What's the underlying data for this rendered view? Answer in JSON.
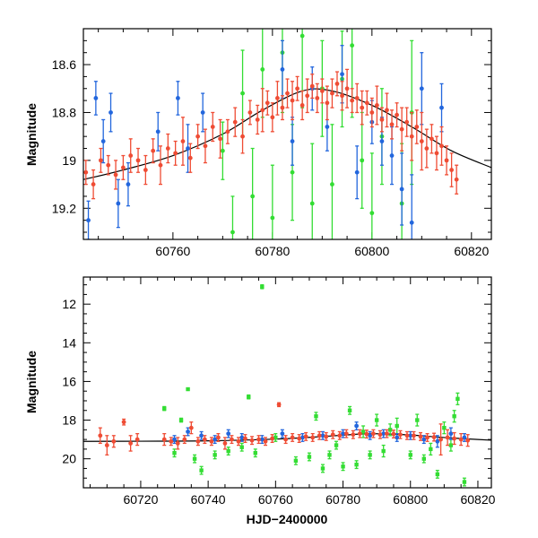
{
  "chart_data": [
    {
      "type": "scatter",
      "panel": "top",
      "title": "",
      "xlabel": "",
      "ylabel": "Magnitude",
      "xlim": [
        60742,
        60824
      ],
      "ylim": [
        19.33,
        18.45
      ],
      "y_inverted": true,
      "xticks": [
        60760,
        60780,
        60800,
        60820
      ],
      "yticks": [
        18.6,
        18.8,
        19,
        19.2
      ],
      "ytick_labels": [
        "18.6",
        "18.8",
        "19",
        "19.2"
      ],
      "grid": false,
      "legend": "none",
      "colors": {
        "red": "#ef4c34",
        "blue": "#2266dd",
        "green": "#33dd33",
        "model": "#000000"
      },
      "model_curve": {
        "x": [
          60742,
          60750,
          60760,
          60770,
          60778,
          60786,
          60792,
          60800,
          60808,
          60816,
          60824
        ],
        "y": [
          19.08,
          19.04,
          18.98,
          18.89,
          18.79,
          18.71,
          18.71,
          18.77,
          18.86,
          18.96,
          19.03
        ]
      },
      "series": [
        {
          "name": "",
          "color": "red",
          "x": [
            60742.5,
            60744,
            60745.5,
            60747,
            60748.5,
            60750,
            60751.5,
            60753,
            60754.5,
            60756,
            60757.5,
            60759,
            60760.5,
            60762,
            60763.5,
            60765,
            60766.5,
            60768,
            60769.5,
            60771,
            60772.5,
            60774,
            60775.5,
            60777,
            60778,
            60779,
            60780,
            60781,
            60782,
            60783,
            60784,
            60785,
            60786,
            60787,
            60788,
            60789,
            60790,
            60791,
            60792,
            60793,
            60794,
            60795,
            60796,
            60797,
            60798,
            60799,
            60800,
            60801,
            60802,
            60803,
            60804,
            60805,
            60806,
            60807,
            60808,
            60809,
            60810,
            60811,
            60812,
            60813,
            60814,
            60815,
            60816,
            60817
          ],
          "y": [
            19.05,
            19.1,
            19.0,
            19.02,
            19.06,
            19.03,
            18.98,
            19.0,
            19.04,
            18.96,
            19.02,
            18.95,
            18.97,
            18.92,
            18.99,
            18.9,
            18.94,
            18.86,
            18.91,
            18.88,
            18.84,
            18.9,
            18.8,
            18.83,
            18.79,
            18.76,
            18.82,
            18.74,
            18.78,
            18.72,
            18.75,
            18.7,
            18.77,
            18.73,
            18.69,
            18.74,
            18.71,
            18.76,
            18.72,
            18.68,
            18.73,
            18.7,
            18.75,
            18.74,
            18.78,
            18.76,
            18.8,
            18.77,
            18.83,
            18.79,
            18.85,
            18.81,
            18.87,
            18.84,
            18.9,
            18.86,
            18.92,
            18.95,
            18.91,
            18.97,
            18.94,
            19.0,
            19.04,
            19.08
          ],
          "err": [
            0.05,
            0.06,
            0.05,
            0.04,
            0.06,
            0.05,
            0.07,
            0.05,
            0.06,
            0.05,
            0.08,
            0.06,
            0.05,
            0.1,
            0.06,
            0.05,
            0.07,
            0.06,
            0.08,
            0.05,
            0.06,
            0.07,
            0.05,
            0.06,
            0.09,
            0.05,
            0.06,
            0.07,
            0.05,
            0.06,
            0.08,
            0.05,
            0.06,
            0.07,
            0.05,
            0.06,
            0.05,
            0.07,
            0.06,
            0.05,
            0.06,
            0.08,
            0.05,
            0.06,
            0.07,
            0.05,
            0.06,
            0.08,
            0.05,
            0.07,
            0.06,
            0.05,
            0.09,
            0.06,
            0.1,
            0.07,
            0.12,
            0.08,
            0.06,
            0.07,
            0.08,
            0.06,
            0.07,
            0.06
          ]
        },
        {
          "name": "",
          "color": "blue",
          "x": [
            60743,
            60744.5,
            60746,
            60747.5,
            60749,
            60751,
            60757,
            60761,
            60763,
            60766,
            60782,
            60784,
            60788,
            60791,
            60794,
            60797,
            60800,
            60802,
            60804,
            60806,
            60808,
            60810,
            60814
          ],
          "y": [
            19.25,
            18.74,
            18.92,
            18.8,
            19.18,
            19.1,
            18.88,
            18.74,
            18.95,
            18.8,
            18.62,
            18.92,
            18.7,
            18.86,
            18.64,
            19.05,
            18.84,
            18.92,
            18.98,
            19.12,
            19.26,
            18.7,
            18.78
          ],
          "err": [
            0.08,
            0.07,
            0.09,
            0.08,
            0.1,
            0.09,
            0.08,
            0.07,
            0.1,
            0.08,
            0.12,
            0.1,
            0.09,
            0.1,
            0.12,
            0.11,
            0.09,
            0.1,
            0.12,
            0.15,
            0.2,
            0.15,
            0.1
          ]
        },
        {
          "name": "",
          "color": "green",
          "x": [
            60770,
            60772,
            60774,
            60776,
            60778,
            60780,
            60782,
            60784,
            60786,
            60788,
            60790,
            60792,
            60794,
            60796,
            60798,
            60800,
            60802,
            60806,
            60808
          ],
          "y": [
            18.96,
            19.3,
            18.72,
            19.15,
            18.62,
            19.24,
            18.55,
            19.05,
            18.48,
            19.18,
            18.7,
            19.1,
            18.66,
            18.52,
            19.0,
            19.22,
            18.9,
            19.18,
            18.8
          ],
          "err": [
            0.12,
            0.15,
            0.18,
            0.2,
            0.2,
            0.22,
            0.25,
            0.2,
            0.3,
            0.25,
            0.2,
            0.25,
            0.2,
            0.3,
            0.2,
            0.25,
            0.2,
            0.25,
            0.3
          ]
        }
      ]
    },
    {
      "type": "scatter",
      "panel": "bottom",
      "title": "",
      "xlabel": "HJD−2400000",
      "ylabel": "Magnitude",
      "xlim": [
        60703,
        60824
      ],
      "ylim": [
        21.5,
        10.6
      ],
      "y_inverted": true,
      "xticks": [
        60720,
        60740,
        60760,
        60780,
        60800,
        60820
      ],
      "yticks": [
        12,
        14,
        16,
        18,
        20
      ],
      "ytick_labels": [
        "12",
        "14",
        "16",
        "18",
        "20"
      ],
      "grid": false,
      "legend": "none",
      "model_curve": {
        "x": [
          60703,
          60720,
          60740,
          60760,
          60770,
          60780,
          60786,
          60792,
          60800,
          60810,
          60820,
          60824
        ],
        "y": [
          19.1,
          19.09,
          19.07,
          18.98,
          18.89,
          18.78,
          18.71,
          18.71,
          18.77,
          18.9,
          19.0,
          19.04
        ]
      },
      "series": [
        {
          "name": "",
          "color": "red",
          "x": [
            60708,
            60710,
            60712,
            60715,
            60717,
            60719,
            60727,
            60729,
            60731,
            60733,
            60735,
            60737,
            60739,
            60741,
            60743,
            60745,
            60747,
            60749,
            60751,
            60753,
            60755,
            60757,
            60759,
            60761,
            60763,
            60765,
            60767,
            60769,
            60771,
            60773,
            60775,
            60777,
            60779,
            60781,
            60783,
            60785,
            60787,
            60789,
            60791,
            60793,
            60795,
            60797,
            60799,
            60801,
            60803,
            60805,
            60807,
            60809,
            60811,
            60813,
            60815,
            60817
          ],
          "y": [
            18.8,
            19.3,
            19.1,
            18.1,
            19.2,
            19.0,
            19.0,
            19.1,
            19.2,
            19.0,
            18.4,
            19.1,
            19.0,
            19.1,
            18.9,
            19.2,
            19.0,
            19.1,
            18.95,
            19.05,
            19.0,
            19.1,
            18.95,
            17.2,
            19.0,
            18.9,
            18.95,
            18.85,
            18.9,
            18.8,
            18.85,
            18.75,
            18.8,
            18.7,
            18.75,
            18.7,
            18.72,
            18.7,
            18.75,
            18.7,
            18.72,
            18.75,
            18.8,
            18.8,
            18.85,
            18.9,
            18.88,
            19.0,
            18.9,
            18.95,
            19.0,
            19.05
          ],
          "err": [
            0.4,
            0.5,
            0.3,
            0.15,
            0.4,
            0.3,
            0.3,
            0.2,
            0.3,
            0.2,
            0.3,
            0.2,
            0.2,
            0.2,
            0.2,
            0.3,
            0.2,
            0.2,
            0.2,
            0.2,
            0.2,
            0.2,
            0.2,
            0.1,
            0.2,
            0.2,
            0.2,
            0.2,
            0.2,
            0.2,
            0.2,
            0.2,
            0.2,
            0.2,
            0.2,
            0.2,
            0.2,
            0.2,
            0.2,
            0.2,
            0.2,
            0.2,
            0.2,
            0.2,
            0.2,
            0.2,
            0.2,
            0.8,
            0.4,
            0.3,
            0.3,
            0.3
          ]
        },
        {
          "name": "",
          "color": "blue",
          "x": [
            60730,
            60734,
            60738,
            60742,
            60746,
            60750,
            60756,
            60762,
            60768,
            60774,
            60780,
            60784,
            60788,
            60792,
            60796,
            60800,
            60804,
            60808,
            60812,
            60816
          ],
          "y": [
            19.0,
            18.6,
            18.8,
            19.0,
            18.7,
            18.9,
            19.0,
            18.7,
            18.9,
            18.8,
            18.7,
            18.3,
            18.8,
            18.7,
            18.9,
            18.8,
            19.0,
            19.1,
            18.7,
            18.9
          ],
          "err": [
            0.2,
            0.2,
            0.2,
            0.2,
            0.2,
            0.2,
            0.2,
            0.2,
            0.2,
            0.2,
            0.2,
            0.2,
            0.2,
            0.2,
            0.2,
            0.2,
            0.2,
            0.3,
            0.3,
            0.2
          ]
        },
        {
          "name": "",
          "color": "green",
          "x": [
            60727,
            60730,
            60732,
            60734,
            60736,
            60738,
            60742,
            60746,
            60750,
            60752,
            60754,
            60756,
            60760,
            60766,
            60770,
            60772,
            60774,
            60776,
            60778,
            60780,
            60782,
            60784,
            60786,
            60788,
            60790,
            60792,
            60794,
            60796,
            60800,
            60802,
            60804,
            60806,
            60808,
            60810,
            60812,
            60813,
            60814,
            60816
          ],
          "y": [
            17.4,
            19.7,
            18.0,
            16.4,
            20.0,
            20.6,
            19.8,
            19.6,
            19.4,
            16.8,
            19.7,
            11.1,
            18.9,
            20.1,
            19.9,
            17.8,
            20.5,
            19.8,
            19.3,
            20.4,
            17.5,
            20.3,
            18.6,
            19.8,
            18.0,
            19.6,
            18.5,
            18.3,
            19.8,
            18.0,
            20.0,
            19.5,
            20.8,
            18.4,
            19.3,
            17.8,
            16.9,
            21.2
          ],
          "err": [
            0.1,
            0.2,
            0.1,
            0.05,
            0.2,
            0.2,
            0.2,
            0.2,
            0.2,
            0.1,
            0.2,
            0.1,
            0.2,
            0.2,
            0.2,
            0.2,
            0.2,
            0.2,
            0.2,
            0.2,
            0.2,
            0.2,
            0.3,
            0.2,
            0.3,
            0.3,
            0.3,
            0.4,
            0.2,
            0.3,
            0.2,
            0.3,
            0.2,
            0.3,
            0.3,
            0.3,
            0.3,
            0.2
          ]
        }
      ]
    }
  ]
}
